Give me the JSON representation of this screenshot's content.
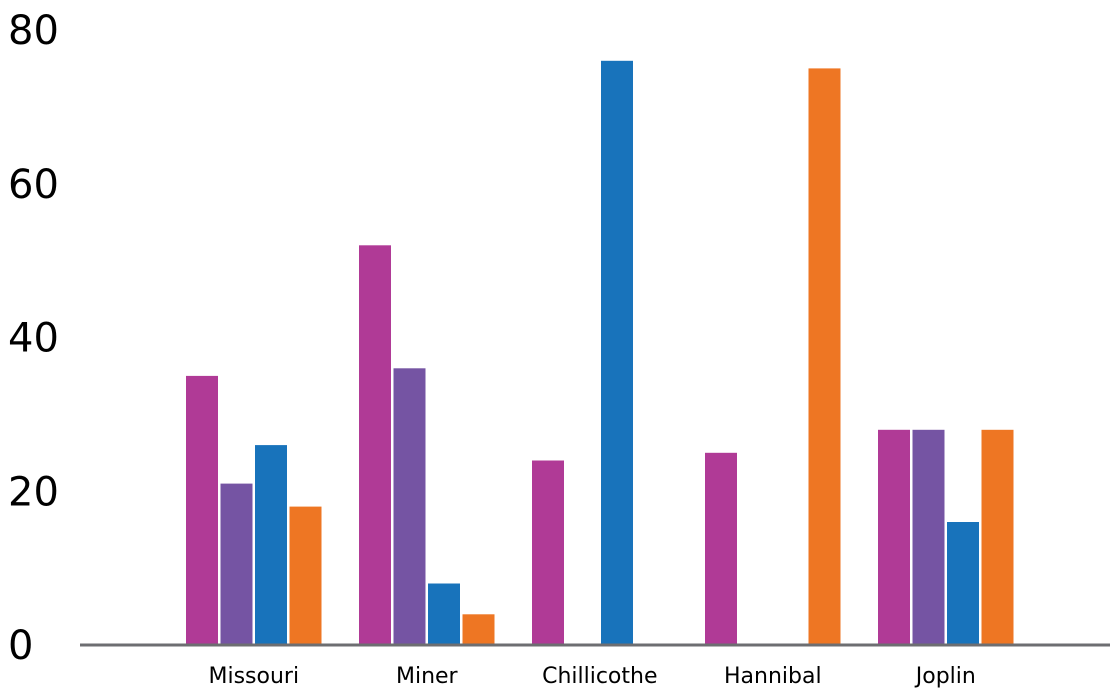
{
  "chart_data": {
    "type": "bar",
    "title": "",
    "xlabel": "",
    "ylabel": "",
    "ylim": [
      0,
      80
    ],
    "yticks": [
      0,
      20,
      40,
      60,
      80
    ],
    "grid": false,
    "legend": "none",
    "categories": [
      "Missouri",
      "Miner",
      "Chillicothe",
      "Hannibal",
      "Joplin"
    ],
    "series": [
      {
        "color": "#b03a96",
        "values": [
          35,
          52,
          24,
          25,
          28
        ]
      },
      {
        "color": "#7554a3",
        "values": [
          21,
          36,
          0,
          0,
          28
        ]
      },
      {
        "color": "#1873bb",
        "values": [
          26,
          8,
          76,
          0,
          16
        ]
      },
      {
        "color": "#ee7623",
        "values": [
          18,
          4,
          0,
          75,
          28
        ]
      }
    ]
  }
}
